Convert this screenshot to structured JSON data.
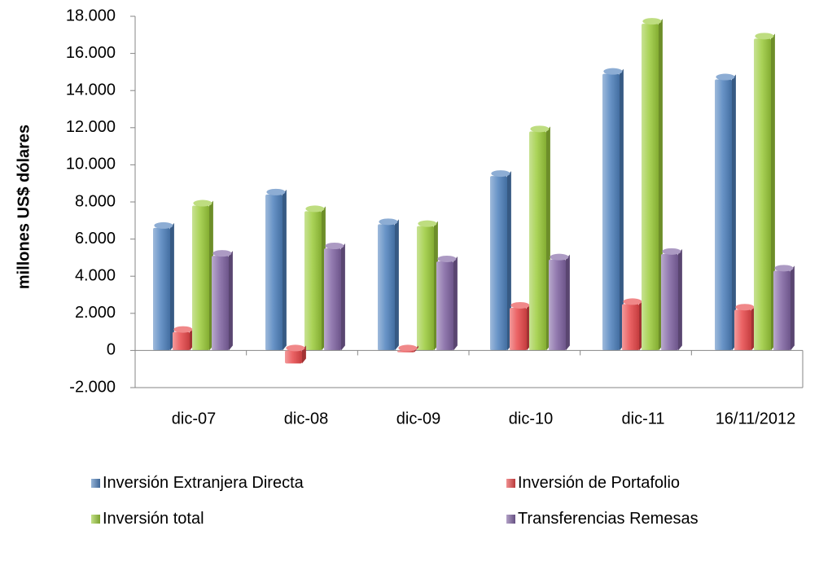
{
  "chart_data": {
    "type": "bar",
    "title": "",
    "xlabel": "",
    "ylabel": "millones US$ dólares",
    "ylim": [
      -2000,
      18000
    ],
    "yticks": [
      -2000,
      0,
      2000,
      4000,
      6000,
      8000,
      10000,
      12000,
      14000,
      16000,
      18000
    ],
    "ytick_labels": [
      "-2.000",
      "0",
      "2.000",
      "4.000",
      "6.000",
      "8.000",
      "10.000",
      "12.000",
      "14.000",
      "16.000",
      "18.000"
    ],
    "categories": [
      "dic-07",
      "dic-08",
      "dic-09",
      "dic-10",
      "dic-11",
      "16/11/2012"
    ],
    "series": [
      {
        "name": "Inversión Extranjera Directa",
        "color": "#4F81BD",
        "values": [
          6600,
          8400,
          6800,
          9400,
          14900,
          14600
        ]
      },
      {
        "name": "Inversión de Portafolio",
        "color": "#E8484A",
        "values": [
          1000,
          -700,
          -100,
          2300,
          2500,
          2200
        ]
      },
      {
        "name": "Inversión total",
        "color": "#9BCB3B",
        "values": [
          7800,
          7500,
          6700,
          11800,
          17600,
          16800
        ]
      },
      {
        "name": "Transferencias Remesas",
        "color": "#8064A2",
        "values": [
          5100,
          5500,
          4800,
          4900,
          5200,
          4300
        ]
      }
    ],
    "grid": false,
    "legend_position": "bottom"
  }
}
